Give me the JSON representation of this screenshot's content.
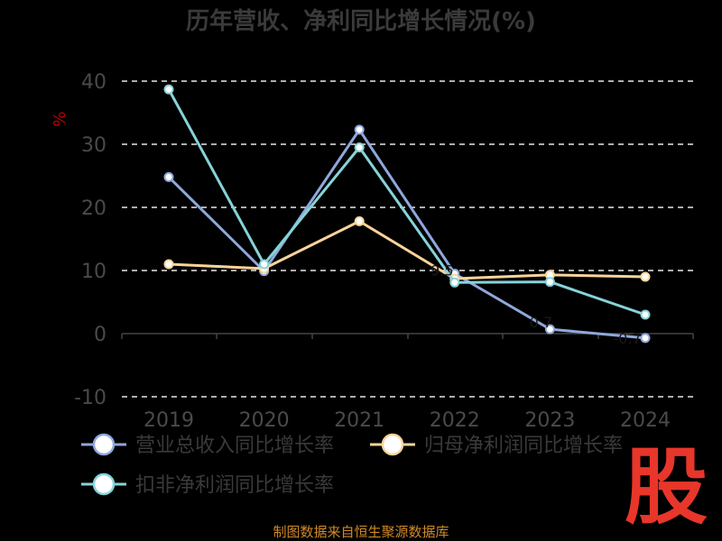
{
  "chart_data": {
    "type": "line",
    "title": "历年营收、净利同比增长情况(%)",
    "ylabel": "%",
    "categories": [
      "2019",
      "2020",
      "2021",
      "2022",
      "2023",
      "2024"
    ],
    "ylim": [
      -10,
      40
    ],
    "yticks": [
      "40",
      "30",
      "20",
      "10",
      "0",
      "-10"
    ],
    "grid": true,
    "legend_position": "bottom",
    "series": [
      {
        "name": "营业总收入同比增长率",
        "color": "#8fa8dc",
        "values": [
          24.8,
          9.9,
          32.3,
          9.5,
          0.7,
          -0.7
        ]
      },
      {
        "name": "归母净利润同比增长率",
        "color": "#fcd49a",
        "values": [
          11.0,
          10.3,
          17.8,
          8.7,
          9.3,
          9.0
        ]
      },
      {
        "name": "扣非净利润同比增长率",
        "color": "#86d3d8",
        "values": [
          38.7,
          11.0,
          29.5,
          8.1,
          8.2,
          3.0
        ]
      }
    ],
    "annotations": [
      "9.5",
      "0.7",
      "-0.7"
    ]
  },
  "source": "制图数据来自恒生聚源数据库",
  "logo_text": "股"
}
